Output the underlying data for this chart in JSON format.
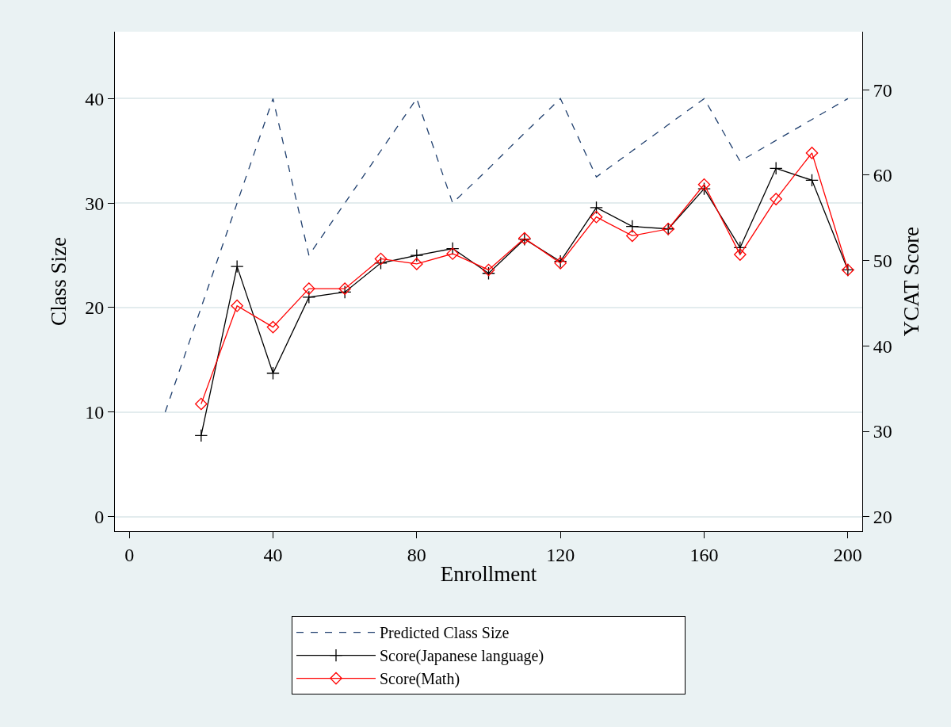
{
  "chart_data": {
    "type": "line",
    "xlabel": "Enrollment",
    "ylabel": "Class Size",
    "y2label": "YCAT Score",
    "x": [
      10,
      20,
      30,
      40,
      50,
      60,
      70,
      80,
      90,
      100,
      110,
      120,
      130,
      140,
      150,
      160,
      170,
      180,
      190,
      200
    ],
    "series": [
      {
        "name": "Predicted Class Size",
        "color": "#1f3f6e",
        "line_style": "dashed",
        "marker": "none",
        "values": [
          10,
          20,
          30,
          40,
          25,
          30,
          35,
          40,
          30,
          33.3,
          36.7,
          40,
          32.5,
          35,
          37.5,
          40,
          34,
          36,
          38,
          40
        ]
      },
      {
        "name": "Score(Japanese language)",
        "color": "#000000",
        "line_style": "solid",
        "marker": "cross",
        "axis": "y2",
        "x": [
          20,
          30,
          40,
          50,
          60,
          70,
          80,
          90,
          100,
          110,
          120,
          130,
          140,
          150,
          160,
          170,
          180,
          190,
          200
        ],
        "values": [
          29.5,
          49.3,
          36.8,
          45.7,
          46.3,
          49.7,
          50.6,
          51.4,
          48.5,
          52.5,
          49.9,
          56.2,
          54.0,
          53.7,
          58.4,
          51.5,
          60.8,
          59.4,
          48.9
        ]
      },
      {
        "name": "Score(Math)",
        "color": "#ff0000",
        "line_style": "solid",
        "marker": "diamond",
        "axis": "y2",
        "x": [
          20,
          30,
          40,
          50,
          60,
          70,
          80,
          90,
          100,
          110,
          120,
          130,
          140,
          150,
          160,
          170,
          180,
          190,
          200
        ],
        "values": [
          33.2,
          44.7,
          42.2,
          46.7,
          46.7,
          50.2,
          49.6,
          50.8,
          48.9,
          52.6,
          49.7,
          55.1,
          52.9,
          53.7,
          58.9,
          50.7,
          57.2,
          62.6,
          48.9
        ]
      }
    ],
    "xlim": [
      -4,
      204
    ],
    "xticks": [
      0,
      40,
      80,
      120,
      160,
      200
    ],
    "ylim": [
      -1.4,
      46.4
    ],
    "yticks": [
      0,
      10,
      20,
      30,
      40
    ],
    "y2lim": [
      18.3,
      76.8
    ],
    "y2ticks": [
      20,
      30,
      40,
      50,
      60,
      70
    ],
    "grid": "y",
    "legend": "bottom"
  }
}
